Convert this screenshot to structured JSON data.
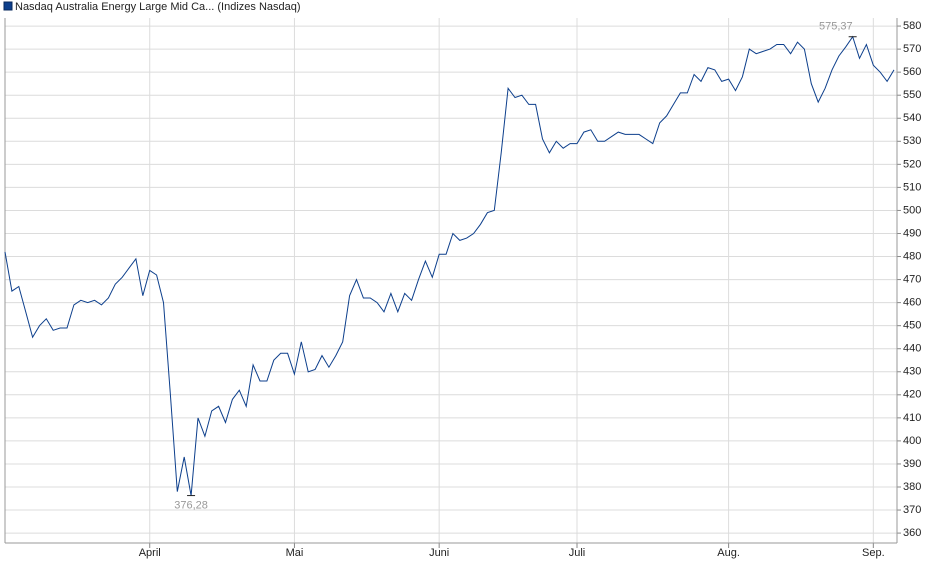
{
  "chart_data": {
    "type": "line",
    "categories": [
      null,
      null,
      null,
      null,
      null,
      null,
      null,
      null,
      null,
      null,
      null,
      null,
      null,
      null,
      null,
      null,
      null,
      null,
      null,
      null,
      null,
      "April",
      null,
      null,
      null,
      null,
      null,
      null,
      null,
      null,
      null,
      null,
      null,
      null,
      null,
      null,
      null,
      null,
      null,
      null,
      null,
      null,
      "Mai",
      null,
      null,
      null,
      null,
      null,
      null,
      null,
      null,
      null,
      null,
      null,
      null,
      null,
      null,
      null,
      null,
      null,
      null,
      null,
      null,
      "Juni",
      null,
      null,
      null,
      null,
      null,
      null,
      null,
      null,
      null,
      null,
      null,
      null,
      null,
      null,
      null,
      null,
      null,
      null,
      null,
      "Juli",
      null,
      null,
      null,
      null,
      null,
      null,
      null,
      null,
      null,
      null,
      null,
      null,
      null,
      null,
      null,
      null,
      null,
      null,
      null,
      null,
      null,
      "Aug.",
      null,
      null,
      null,
      null,
      null,
      null,
      null,
      null,
      null,
      null,
      null,
      null,
      null,
      null,
      null,
      null,
      null,
      null,
      null,
      null,
      "Sep.",
      null,
      null,
      null
    ],
    "series": [
      {
        "name": "Nasdaq Australia Energy Large Mid Ca... (Indizes Nasdaq)",
        "color": "#0d3f8c",
        "values": [
          482,
          465,
          467,
          456,
          445,
          450,
          453,
          448,
          449,
          449,
          459,
          461,
          460,
          461,
          459,
          462,
          468,
          471,
          475,
          479,
          463,
          474,
          472,
          460,
          420,
          378,
          393,
          376.28,
          410,
          402,
          413,
          415,
          408,
          418,
          422,
          415,
          433,
          426,
          426,
          435,
          438,
          438,
          429,
          443,
          430,
          431,
          437,
          432,
          437,
          443,
          463,
          470,
          462,
          462,
          460,
          456,
          464,
          456,
          464,
          461,
          470,
          478,
          471,
          481,
          481,
          490,
          487,
          488,
          490,
          494,
          499,
          500,
          525,
          553,
          549,
          550,
          546,
          546,
          531,
          525,
          530,
          527,
          529,
          529,
          534,
          535,
          530,
          530,
          532,
          534,
          533,
          533,
          533,
          531,
          529,
          538,
          541,
          546,
          551,
          551,
          559,
          556,
          562,
          561,
          556,
          557,
          552,
          558,
          570,
          568,
          569,
          570,
          572,
          572,
          568,
          573,
          570,
          555,
          547,
          553,
          561,
          567,
          571,
          575.37,
          566,
          572,
          563,
          560,
          556,
          561
        ],
        "value_labels": [
          null,
          null,
          null,
          null,
          null,
          null,
          null,
          null,
          null,
          null,
          null,
          null,
          null,
          null,
          null,
          null,
          null,
          null,
          null,
          null,
          null,
          null,
          null,
          null,
          null,
          null,
          null,
          "376,28",
          null,
          null,
          null,
          null,
          null,
          null,
          null,
          null,
          null,
          null,
          null,
          null,
          null,
          null,
          null,
          null,
          null,
          null,
          null,
          null,
          null,
          null,
          null,
          null,
          null,
          null,
          null,
          null,
          null,
          null,
          null,
          null,
          null,
          null,
          null,
          null,
          null,
          null,
          null,
          null,
          null,
          null,
          null,
          null,
          null,
          null,
          null,
          null,
          null,
          null,
          null,
          null,
          null,
          null,
          null,
          null,
          null,
          null,
          null,
          null,
          null,
          null,
          null,
          null,
          null,
          null,
          null,
          null,
          null,
          null,
          null,
          null,
          null,
          null,
          null,
          null,
          null,
          null,
          null,
          null,
          null,
          null,
          null,
          null,
          null,
          null,
          null,
          null,
          null,
          null,
          null,
          null,
          null,
          null,
          null,
          "575,37",
          null,
          null,
          null,
          null,
          null,
          null
        ]
      }
    ],
    "ylim": [
      355.7,
      583.5
    ],
    "yticks": [
      360,
      370,
      380,
      390,
      400,
      410,
      420,
      430,
      440,
      450,
      460,
      470,
      480,
      490,
      500,
      510,
      520,
      530,
      540,
      550,
      560,
      570,
      580
    ],
    "grid": true
  }
}
